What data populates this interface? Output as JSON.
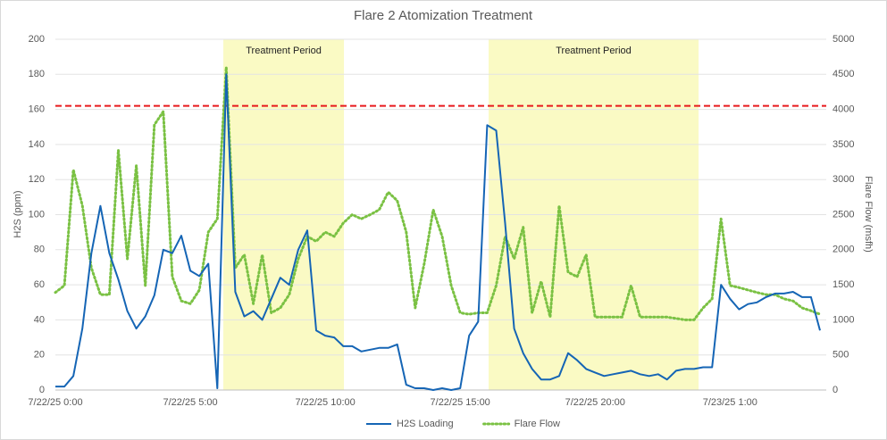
{
  "chart_data": {
    "type": "line",
    "title": "Flare 2 Atomization Treatment",
    "y_label": "H2S (ppm)",
    "y2_label": "Flare Flow (msfh)",
    "categories": [
      "7/22/25 0:00",
      null,
      null,
      null,
      null,
      null,
      null,
      null,
      null,
      null,
      null,
      null,
      null,
      null,
      null,
      "7/22/25 5:00",
      null,
      null,
      null,
      null,
      null,
      null,
      null,
      null,
      null,
      null,
      null,
      null,
      null,
      null,
      "7/22/25 10:00",
      null,
      null,
      null,
      null,
      null,
      null,
      null,
      null,
      null,
      null,
      null,
      null,
      null,
      null,
      "7/22/25 15:00",
      null,
      null,
      null,
      null,
      null,
      null,
      null,
      null,
      null,
      null,
      null,
      null,
      null,
      null,
      "7/22/25 20:00",
      null,
      null,
      null,
      null,
      null,
      null,
      null,
      null,
      null,
      null,
      null,
      null,
      null,
      null,
      "7/23/25 1:00",
      null,
      null,
      null,
      null,
      null,
      null,
      null,
      null,
      null,
      null
    ],
    "series": [
      {
        "name": "H2S Loading",
        "color": "#1565b5",
        "style": "solid",
        "values": [
          2,
          2,
          8,
          35,
          78,
          105,
          78,
          63,
          45,
          35,
          42,
          54,
          80,
          78,
          88,
          68,
          65,
          72,
          1,
          180,
          56,
          42,
          45,
          40,
          52,
          64,
          60,
          80,
          91,
          34,
          31,
          30,
          25,
          25,
          22,
          23,
          24,
          24,
          26,
          3,
          1,
          1,
          0,
          1,
          0,
          1,
          31,
          39,
          151,
          148,
          95,
          35,
          21,
          12,
          6,
          6,
          8,
          21,
          17,
          12,
          10,
          8,
          9,
          10,
          11,
          9,
          8,
          9,
          6,
          11,
          12,
          12,
          13,
          13,
          60,
          52,
          46,
          49,
          50,
          53,
          55,
          55,
          56,
          53,
          53,
          34
        ]
      },
      {
        "name": "Flare Flow",
        "color": "#7ac143",
        "style": "dotted",
        "axis": "y2",
        "values": [
          1390,
          1490,
          3140,
          2630,
          1740,
          1360,
          1360,
          3420,
          1870,
          3200,
          1490,
          3780,
          3970,
          1615,
          1270,
          1230,
          1425,
          2250,
          2440,
          4600,
          1740,
          1930,
          1230,
          1930,
          1100,
          1170,
          1360,
          1870,
          2190,
          2120,
          2250,
          2190,
          2380,
          2500,
          2440,
          2500,
          2570,
          2820,
          2700,
          2250,
          1170,
          1800,
          2570,
          2190,
          1490,
          1100,
          1080,
          1100,
          1100,
          1490,
          2190,
          1870,
          2320,
          1100,
          1550,
          1040,
          2630,
          1680,
          1615,
          1930,
          1040,
          1040,
          1040,
          1040,
          1490,
          1040,
          1040,
          1040,
          1040,
          1020,
          1000,
          1000,
          1170,
          1300,
          2440,
          1490,
          1460,
          1425,
          1390,
          1360,
          1360,
          1300,
          1270,
          1170,
          1130,
          1080
        ]
      }
    ],
    "ylim": [
      0,
      200
    ],
    "yticks": [
      0,
      20,
      40,
      60,
      80,
      100,
      120,
      140,
      160,
      180,
      200
    ],
    "y2lim": [
      0,
      5000
    ],
    "y2ticks": [
      0,
      500,
      1000,
      1500,
      2000,
      2500,
      3000,
      3500,
      4000,
      4500,
      5000
    ],
    "grid": true,
    "legend": "bottom",
    "reference_line": {
      "value": 162,
      "color": "#e8191c"
    },
    "regions": [
      {
        "label": "Treatment Period",
        "from": 18.67,
        "to": 32.08,
        "color": "#fafac4"
      },
      {
        "label": "Treatment Period",
        "from": 48.16,
        "to": 71.5,
        "color": "#fafac4"
      }
    ]
  }
}
